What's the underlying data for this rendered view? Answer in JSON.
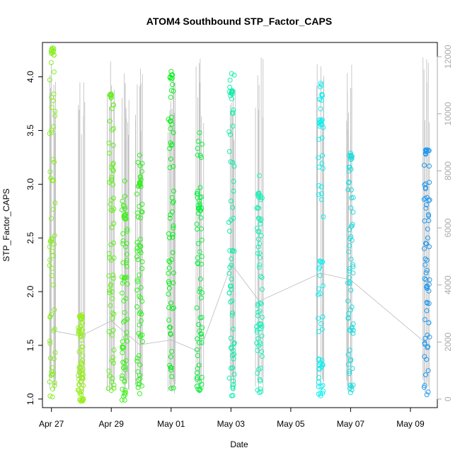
{
  "chart_data": {
    "type": "scatter",
    "title": "ATOM4 Southbound STP_Factor_CAPS",
    "xlabel": "Date",
    "ylabel": "STP_Factor_CAPS",
    "x_ticks": [
      "Apr 27",
      "Apr 29",
      "May 01",
      "May 03",
      "May 05",
      "May 07",
      "May 09"
    ],
    "x_range_days": [
      -0.3,
      12.9
    ],
    "ylim": [
      0.92,
      4.32
    ],
    "y_ticks": [
      1.0,
      1.5,
      2.0,
      2.5,
      3.0,
      3.5,
      4.0
    ],
    "y2lim": [
      -300,
      12500
    ],
    "y2_ticks": [
      0,
      2000,
      4000,
      6000,
      8000,
      10000,
      12000
    ],
    "grid": false,
    "series": [
      {
        "day": 0.03,
        "min": 1.02,
        "max": 4.27,
        "color": "#88ee22",
        "cluster_high": 4.24
      },
      {
        "day": 0.98,
        "min": 0.98,
        "max": 1.77,
        "color": "#99ee22",
        "cluster_high": 1.76
      },
      {
        "day": 2.0,
        "min": 1.08,
        "max": 3.84,
        "color": "#66ee22",
        "cluster_high": 3.82
      },
      {
        "day": 2.45,
        "min": 0.99,
        "max": 3.03,
        "color": "#44ee22",
        "cluster_high": 2.7
      },
      {
        "day": 2.95,
        "min": 1.05,
        "max": 3.27,
        "color": "#33ee22",
        "cluster_high": 3.0
      },
      {
        "day": 4.0,
        "min": 1.1,
        "max": 4.05,
        "color": "#11ee22",
        "cluster_high": 4.0
      },
      {
        "day": 4.95,
        "min": 1.08,
        "max": 3.48,
        "color": "#11ee44",
        "cluster_high": 2.78
      },
      {
        "day": 6.02,
        "min": 1.03,
        "max": 4.03,
        "color": "#11eeaa",
        "cluster_high": 3.85
      },
      {
        "day": 6.95,
        "min": 1.06,
        "max": 3.08,
        "color": "#22eebb",
        "cluster_high": 2.9
      },
      {
        "day": 9.0,
        "min": 1.03,
        "max": 3.94,
        "color": "#11eeee",
        "cluster_high": 3.58
      },
      {
        "day": 10.0,
        "min": 1.06,
        "max": 3.29,
        "color": "#22dddd",
        "cluster_high": 3.25
      },
      {
        "day": 12.55,
        "min": 1.04,
        "max": 3.32,
        "color": "#2299ee",
        "cluster_high": 3.3
      }
    ],
    "colors": {
      "gray_line": "#bbbbbb",
      "right_axis": "#aaaaaa"
    }
  }
}
